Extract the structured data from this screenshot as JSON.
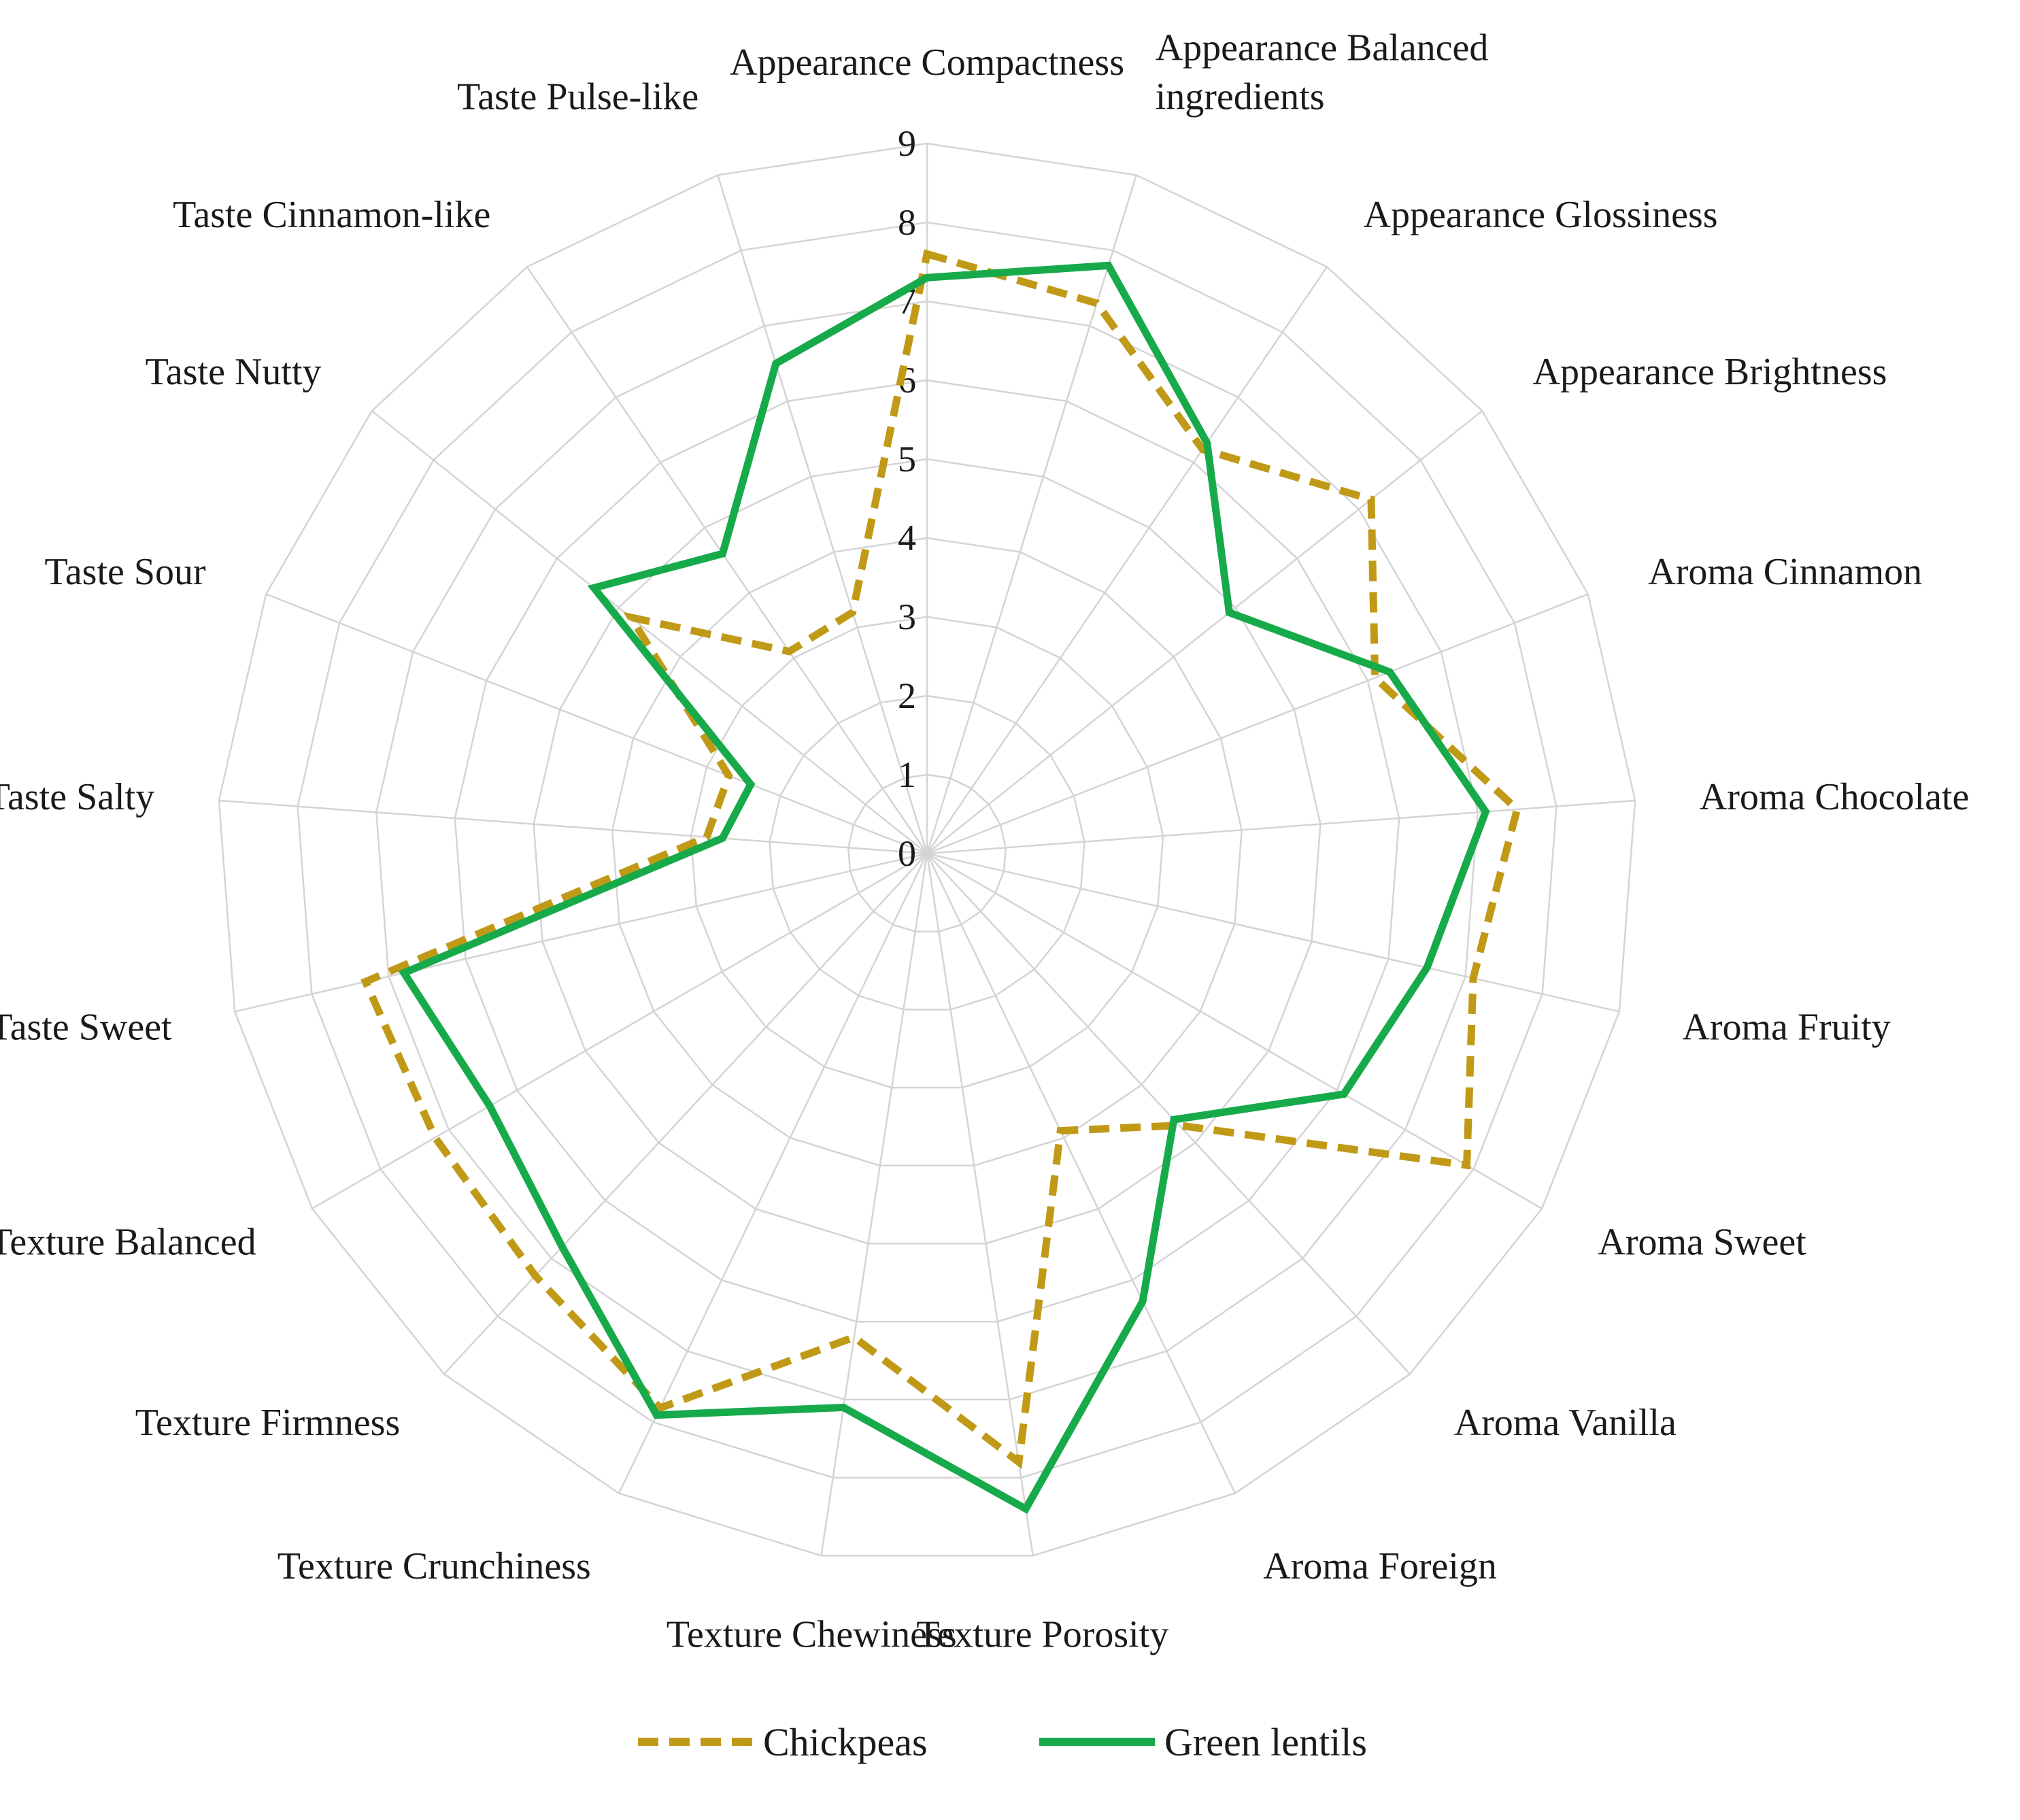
{
  "chart_data": {
    "type": "radar",
    "categories": [
      "Appearance Compactness",
      "Appearance Balanced ingredients",
      "Appearance Glossiness",
      "Appearance Brightness",
      "Aroma Cinnamon",
      "Aroma Chocolate",
      "Aroma Fruity",
      "Aroma Sweet",
      "Aroma Vanilla",
      "Aroma Foreign",
      "Texture Porosity",
      "Texture Chewiness",
      "Texture Crunchiness",
      "Texture Firmness",
      "Texture Balanced",
      "Taste Sweet",
      "Taste Salty",
      "Taste Sour",
      "Taste Nutty",
      "Taste Cinnamon-like",
      "Taste Pulse-like"
    ],
    "category_lines": [
      [
        "Appearance Compactness"
      ],
      [
        "Appearance Balanced",
        "ingredients"
      ],
      [
        "Appearance Glossiness"
      ],
      [
        "Appearance Brightness"
      ],
      [
        "Aroma Cinnamon"
      ],
      [
        "Aroma Chocolate"
      ],
      [
        "Aroma Fruity"
      ],
      [
        "Aroma Sweet"
      ],
      [
        "Aroma Vanilla"
      ],
      [
        "Aroma Foreign"
      ],
      [
        "Texture Porosity"
      ],
      [
        "Texture Chewiness"
      ],
      [
        "Texture Crunchiness"
      ],
      [
        "Texture Firmness"
      ],
      [
        "Texture Balanced"
      ],
      [
        "Taste Sweet"
      ],
      [
        "Taste Salty"
      ],
      [
        "Taste Sour"
      ],
      [
        "Taste Nutty"
      ],
      [
        "Taste Cinnamon-like"
      ],
      [
        "Taste Pulse-like"
      ]
    ],
    "series": [
      {
        "name": "Chickpeas",
        "color": "#c09a17",
        "dash": "dashed",
        "values": [
          7.6,
          7.3,
          6.2,
          7.2,
          6.1,
          7.5,
          7.1,
          7.9,
          4.7,
          3.9,
          7.8,
          6.2,
          7.8,
          7.3,
          7.2,
          7.3,
          2.8,
          2.7,
          4.8,
          3.1,
          3.2
        ]
      },
      {
        "name": "Green lentils",
        "color": "#17aa4a",
        "dash": "solid",
        "values": [
          7.3,
          7.8,
          6.3,
          4.9,
          6.3,
          7.1,
          6.5,
          6.1,
          4.6,
          6.3,
          8.4,
          7.1,
          7.9,
          6.8,
          6.4,
          6.8,
          2.6,
          2.4,
          5.4,
          4.6,
          6.5
        ]
      }
    ],
    "ticks": [
      "0",
      "1",
      "2",
      "3",
      "4",
      "5",
      "6",
      "7",
      "8",
      "9"
    ],
    "rmax": 9,
    "grid": true,
    "legend": "bottom"
  }
}
